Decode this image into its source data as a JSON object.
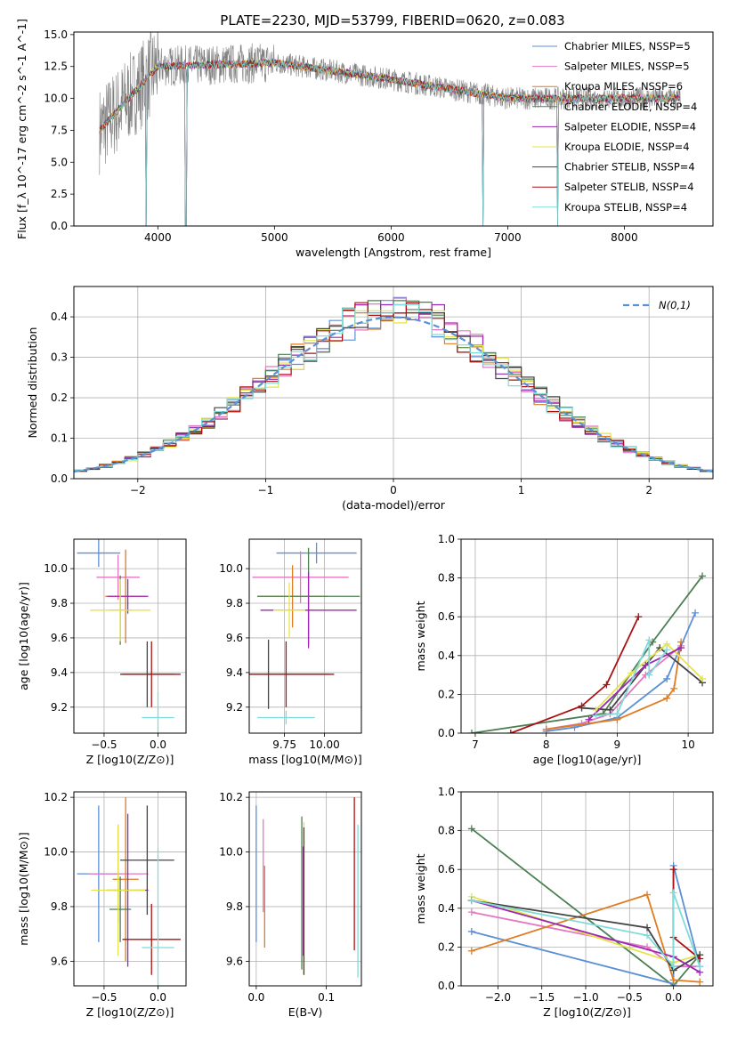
{
  "title": "PLATE=2230, MJD=53799, FIBERID=0620, z=0.083",
  "colors": {
    "chabrier_miles": "#5b8fd6",
    "salpeter_miles": "#e377c2",
    "kroupa_miles": "#e07b20",
    "chabrier_elodie": "#4c7f52",
    "salpeter_elodie": "#9c27b0",
    "kroupa_elodie": "#e6e34a",
    "chabrier_stelib": "#444444",
    "salpeter_stelib": "#aa1111",
    "kroupa_stelib": "#7fdbd9",
    "observed": "#808080",
    "normal": "#5b8fd6"
  },
  "chart_data": [
    {
      "id": "spectrum",
      "type": "line",
      "title": "PLATE=2230, MJD=53799, FIBERID=0620, z=0.083",
      "xlabel": "wavelength [Angstrom, rest frame]",
      "ylabel": "Flux [f_λ 10^-17 erg cm^-2 s^-1 A^-1]",
      "xlim": [
        3280,
        8760
      ],
      "ylim": [
        0,
        15.2
      ],
      "xticks": [
        "4000",
        "5000",
        "6000",
        "7000",
        "8000"
      ],
      "yticks": [
        "0.0",
        "2.5",
        "5.0",
        "7.5",
        "10.0",
        "12.5",
        "15.0"
      ],
      "legend_position": "top-right",
      "legend": [
        "Chabrier MILES, NSSP=5",
        "Salpeter MILES, NSSP=5",
        "Kroupa MILES, NSSP=6",
        "Chabrier ELODIE, NSSP=4",
        "Salpeter ELODIE, NSSP=4",
        "Kroupa ELODIE, NSSP=4",
        "Chabrier STELIB, NSSP=4",
        "Salpeter STELIB, NSSP=4",
        "Kroupa STELIB, NSSP=4"
      ],
      "observed": {
        "x": [
          3500,
          8480
        ],
        "noise_range": [
          5,
          15.2
        ],
        "continuum": [
          [
            3500,
            7.5
          ],
          [
            4000,
            12.5
          ],
          [
            5000,
            12.8
          ],
          [
            6000,
            11.5
          ],
          [
            7000,
            10.0
          ],
          [
            8000,
            10.0
          ],
          [
            8480,
            10.0
          ]
        ]
      },
      "model_features": [
        {
          "x": 3900,
          "y": 0
        },
        {
          "x": 4240,
          "y": 0
        },
        {
          "x": 6790,
          "y": 0
        },
        {
          "x": 7430,
          "y": 0
        }
      ]
    },
    {
      "id": "residuals",
      "type": "histogram",
      "xlabel": "(data-model)/error",
      "ylabel": "Normed distribution",
      "xlim": [
        -2.5,
        2.5
      ],
      "ylim": [
        0,
        0.475
      ],
      "xticks": [
        "-2",
        "-1",
        "0",
        "1",
        "2"
      ],
      "yticks": [
        "0.0",
        "0.1",
        "0.2",
        "0.3",
        "0.4"
      ],
      "legend": "N(0,1)",
      "legend_position": "top-right",
      "bin_width": 0.1,
      "base_profile": "gaussian",
      "peak_values": [
        0.46,
        0.455,
        0.41,
        0.44,
        0.43,
        0.415,
        0.41,
        0.435,
        0.43
      ]
    },
    {
      "id": "age_vs_Z",
      "type": "errorbar",
      "xlabel": "Z [log10(Z/Z⊙)]",
      "ylabel": "age [log10(age/yr)]",
      "xlim": [
        -0.78,
        0.26
      ],
      "ylim": [
        9.05,
        10.17
      ],
      "xticks": [
        "-0.5",
        "0.0"
      ],
      "yticks": [
        "9.2",
        "9.4",
        "9.6",
        "9.8",
        "10.0"
      ],
      "points": [
        {
          "x": -0.55,
          "y": 10.09,
          "xerr": 0.2,
          "yerr": 0.08
        },
        {
          "x": -0.37,
          "y": 9.95,
          "xerr": 0.2,
          "yerr": 0.13
        },
        {
          "x": -0.3,
          "y": 9.84,
          "xerr": 0.19,
          "yerr": 0.27
        },
        {
          "x": -0.35,
          "y": 9.76,
          "xerr": 0.1,
          "yerr": 0.2
        },
        {
          "x": -0.28,
          "y": 9.84,
          "xerr": 0.19,
          "yerr": 0.1
        },
        {
          "x": -0.35,
          "y": 9.76,
          "xerr": 0.28,
          "yerr": 0.18
        },
        {
          "x": -0.1,
          "y": 9.39,
          "xerr": 0.25,
          "yerr": 0.19
        },
        {
          "x": -0.06,
          "y": 9.39,
          "xerr": 0.27,
          "yerr": 0.19
        },
        {
          "x": 0.0,
          "y": 9.14,
          "xerr": 0.15,
          "yerr": 0.15
        }
      ]
    },
    {
      "id": "age_vs_mass",
      "type": "errorbar",
      "xlabel": "mass [log10(M/M⊙)]",
      "ylabel": "",
      "xlim": [
        9.53,
        10.23
      ],
      "ylim": [
        9.05,
        10.17
      ],
      "xticks": [
        "9.75",
        "10.00"
      ],
      "yticks": [
        "9.2",
        "9.4",
        "9.6",
        "9.8",
        "10.0"
      ],
      "points": [
        {
          "x": 9.95,
          "y": 10.09,
          "xerr": 0.25,
          "yerr": 0.06
        },
        {
          "x": 9.85,
          "y": 9.95,
          "xerr": 0.3,
          "yerr": 0.15
        },
        {
          "x": 9.8,
          "y": 9.84,
          "xerr": 0.22,
          "yerr": 0.18
        },
        {
          "x": 9.9,
          "y": 9.84,
          "xerr": 0.32,
          "yerr": 0.28
        },
        {
          "x": 9.9,
          "y": 9.76,
          "xerr": 0.3,
          "yerr": 0.22
        },
        {
          "x": 9.78,
          "y": 9.76,
          "xerr": 0.1,
          "yerr": 0.16
        },
        {
          "x": 9.65,
          "y": 9.39,
          "xerr": 0.38,
          "yerr": 0.2
        },
        {
          "x": 9.76,
          "y": 9.39,
          "xerr": 0.3,
          "yerr": 0.19
        },
        {
          "x": 9.76,
          "y": 9.14,
          "xerr": 0.18,
          "yerr": 0.04
        }
      ]
    },
    {
      "id": "massweight_vs_age",
      "type": "line",
      "xlabel": "age [log10(age/yr)]",
      "ylabel": "mass weight",
      "xlim": [
        6.8,
        10.35
      ],
      "ylim": [
        0,
        1.0
      ],
      "xticks": [
        "7",
        "8",
        "9",
        "10"
      ],
      "yticks": [
        "0.0",
        "0.2",
        "0.4",
        "0.6",
        "0.8",
        "1.0"
      ],
      "series": [
        {
          "color": "#4c7f52",
          "x": [
            6.95,
            8.8,
            9.5,
            10.2
          ],
          "y": [
            0.0,
            0.1,
            0.47,
            0.81
          ]
        },
        {
          "color": "#aa1111",
          "x": [
            7.5,
            8.5,
            8.85,
            9.3
          ],
          "y": [
            0.0,
            0.14,
            0.25,
            0.6
          ]
        },
        {
          "color": "#5b8fd6",
          "x": [
            8.0,
            8.4,
            9.0,
            9.7,
            10.1
          ],
          "y": [
            0.01,
            0.03,
            0.08,
            0.28,
            0.62
          ]
        },
        {
          "color": "#e377c2",
          "x": [
            8.0,
            8.5,
            8.9,
            9.4,
            9.9
          ],
          "y": [
            0.02,
            0.05,
            0.1,
            0.3,
            0.45
          ]
        },
        {
          "color": "#e07b20",
          "x": [
            8.0,
            9.0,
            9.7,
            9.8,
            9.9
          ],
          "y": [
            0.02,
            0.07,
            0.18,
            0.23,
            0.47
          ]
        },
        {
          "color": "#444444",
          "x": [
            8.5,
            8.9,
            9.6,
            10.2
          ],
          "y": [
            0.13,
            0.12,
            0.44,
            0.26
          ]
        },
        {
          "color": "#e6e34a",
          "x": [
            8.7,
            9.2,
            9.7,
            10.2
          ],
          "y": [
            0.12,
            0.31,
            0.46,
            0.28
          ]
        },
        {
          "color": "#9c27b0",
          "x": [
            8.6,
            9.4,
            9.9
          ],
          "y": [
            0.07,
            0.35,
            0.44
          ]
        },
        {
          "color": "#7fdbd9",
          "x": [
            8.7,
            9.0,
            9.45,
            9.45,
            9.7
          ],
          "y": [
            0.09,
            0.1,
            0.48,
            0.3,
            0.43
          ]
        }
      ]
    },
    {
      "id": "mass_vs_Z",
      "type": "errorbar",
      "xlabel": "Z [log10(Z/Z⊙)]",
      "ylabel": "mass [log10(M/M⊙)]",
      "xlim": [
        -0.78,
        0.26
      ],
      "ylim": [
        9.51,
        10.22
      ],
      "xticks": [
        "-0.5",
        "0.0"
      ],
      "yticks": [
        "9.6",
        "9.8",
        "10.0",
        "10.2"
      ],
      "points": [
        {
          "x": -0.55,
          "y": 9.92,
          "xerr": 0.2,
          "yerr": 0.25
        },
        {
          "x": -0.37,
          "y": 9.92,
          "xerr": 0.28,
          "yerr": 0.18
        },
        {
          "x": -0.3,
          "y": 9.9,
          "xerr": 0.12,
          "yerr": 0.3
        },
        {
          "x": -0.35,
          "y": 9.79,
          "xerr": 0.1,
          "yerr": 0.12
        },
        {
          "x": -0.28,
          "y": 9.86,
          "xerr": 0.19,
          "yerr": 0.28
        },
        {
          "x": -0.37,
          "y": 9.86,
          "xerr": 0.25,
          "yerr": 0.24
        },
        {
          "x": -0.1,
          "y": 9.97,
          "xerr": 0.25,
          "yerr": 0.2
        },
        {
          "x": -0.06,
          "y": 9.68,
          "xerr": 0.27,
          "yerr": 0.13
        },
        {
          "x": 0.0,
          "y": 9.65,
          "xerr": 0.15,
          "yerr": 0.36
        }
      ]
    },
    {
      "id": "mass_vs_ebv",
      "type": "errorbar",
      "xlabel": "E(B-V)",
      "ylabel": "",
      "xlim": [
        -0.01,
        0.15
      ],
      "ylim": [
        9.51,
        10.22
      ],
      "xticks": [
        "0.0",
        "0.1"
      ],
      "yticks": [
        "9.6",
        "9.8",
        "10.0",
        "10.2"
      ],
      "points": [
        {
          "x": 0.0,
          "y": 9.92,
          "yerr": 0.25
        },
        {
          "x": 0.01,
          "y": 9.95,
          "yerr": 0.17
        },
        {
          "x": 0.012,
          "y": 9.8,
          "yerr": 0.15
        },
        {
          "x": 0.065,
          "y": 9.85,
          "yerr": 0.28
        },
        {
          "x": 0.067,
          "y": 9.82,
          "yerr": 0.2
        },
        {
          "x": 0.068,
          "y": 9.83,
          "yerr": 0.28
        },
        {
          "x": 0.068,
          "y": 9.82,
          "yerr": 0.27
        },
        {
          "x": 0.14,
          "y": 9.92,
          "yerr": 0.28
        },
        {
          "x": 0.145,
          "y": 9.82,
          "yerr": 0.28
        }
      ]
    },
    {
      "id": "massweight_vs_Z",
      "type": "line",
      "xlabel": "Z [log10(Z/Z⊙)]",
      "ylabel": "mass weight",
      "xlim": [
        -2.42,
        0.45
      ],
      "ylim": [
        0,
        1.0
      ],
      "xticks": [
        "-2.0",
        "-1.5",
        "-1.0",
        "-0.5",
        "0.0"
      ],
      "yticks": [
        "0.0",
        "0.2",
        "0.4",
        "0.6",
        "0.8",
        "1.0"
      ],
      "series": [
        {
          "color": "#4c7f52",
          "x": [
            -2.3,
            0.0,
            0.3
          ],
          "y": [
            0.81,
            0.0,
            0.16
          ]
        },
        {
          "color": "#5b8fd6",
          "x": [
            -2.3,
            0.0,
            0.0,
            0.3
          ],
          "y": [
            0.28,
            0.01,
            0.62,
            0.1
          ]
        },
        {
          "color": "#e377c2",
          "x": [
            -2.3,
            -0.3,
            0.0,
            0.3
          ],
          "y": [
            0.38,
            0.2,
            0.1,
            0.1
          ]
        },
        {
          "color": "#e07b20",
          "x": [
            -2.3,
            -0.3,
            0.0,
            0.3
          ],
          "y": [
            0.18,
            0.47,
            0.03,
            0.02
          ]
        },
        {
          "color": "#e6e34a",
          "x": [
            -2.3,
            0.0,
            0.3
          ],
          "y": [
            0.46,
            0.12,
            0.16
          ]
        },
        {
          "color": "#444444",
          "x": [
            -2.3,
            -0.3,
            0.0,
            0.3
          ],
          "y": [
            0.44,
            0.3,
            0.08,
            0.16
          ]
        },
        {
          "color": "#aa1111",
          "x": [
            0.0,
            0.0,
            0.3
          ],
          "y": [
            0.6,
            0.25,
            0.14
          ]
        },
        {
          "color": "#9c27b0",
          "x": [
            -2.3,
            0.0,
            0.3
          ],
          "y": [
            0.44,
            0.15,
            0.07
          ]
        },
        {
          "color": "#7fdbd9",
          "x": [
            -2.3,
            -0.3,
            0.0,
            0.0,
            0.3
          ],
          "y": [
            0.44,
            0.26,
            0.1,
            0.48,
            0.1
          ]
        }
      ]
    }
  ]
}
